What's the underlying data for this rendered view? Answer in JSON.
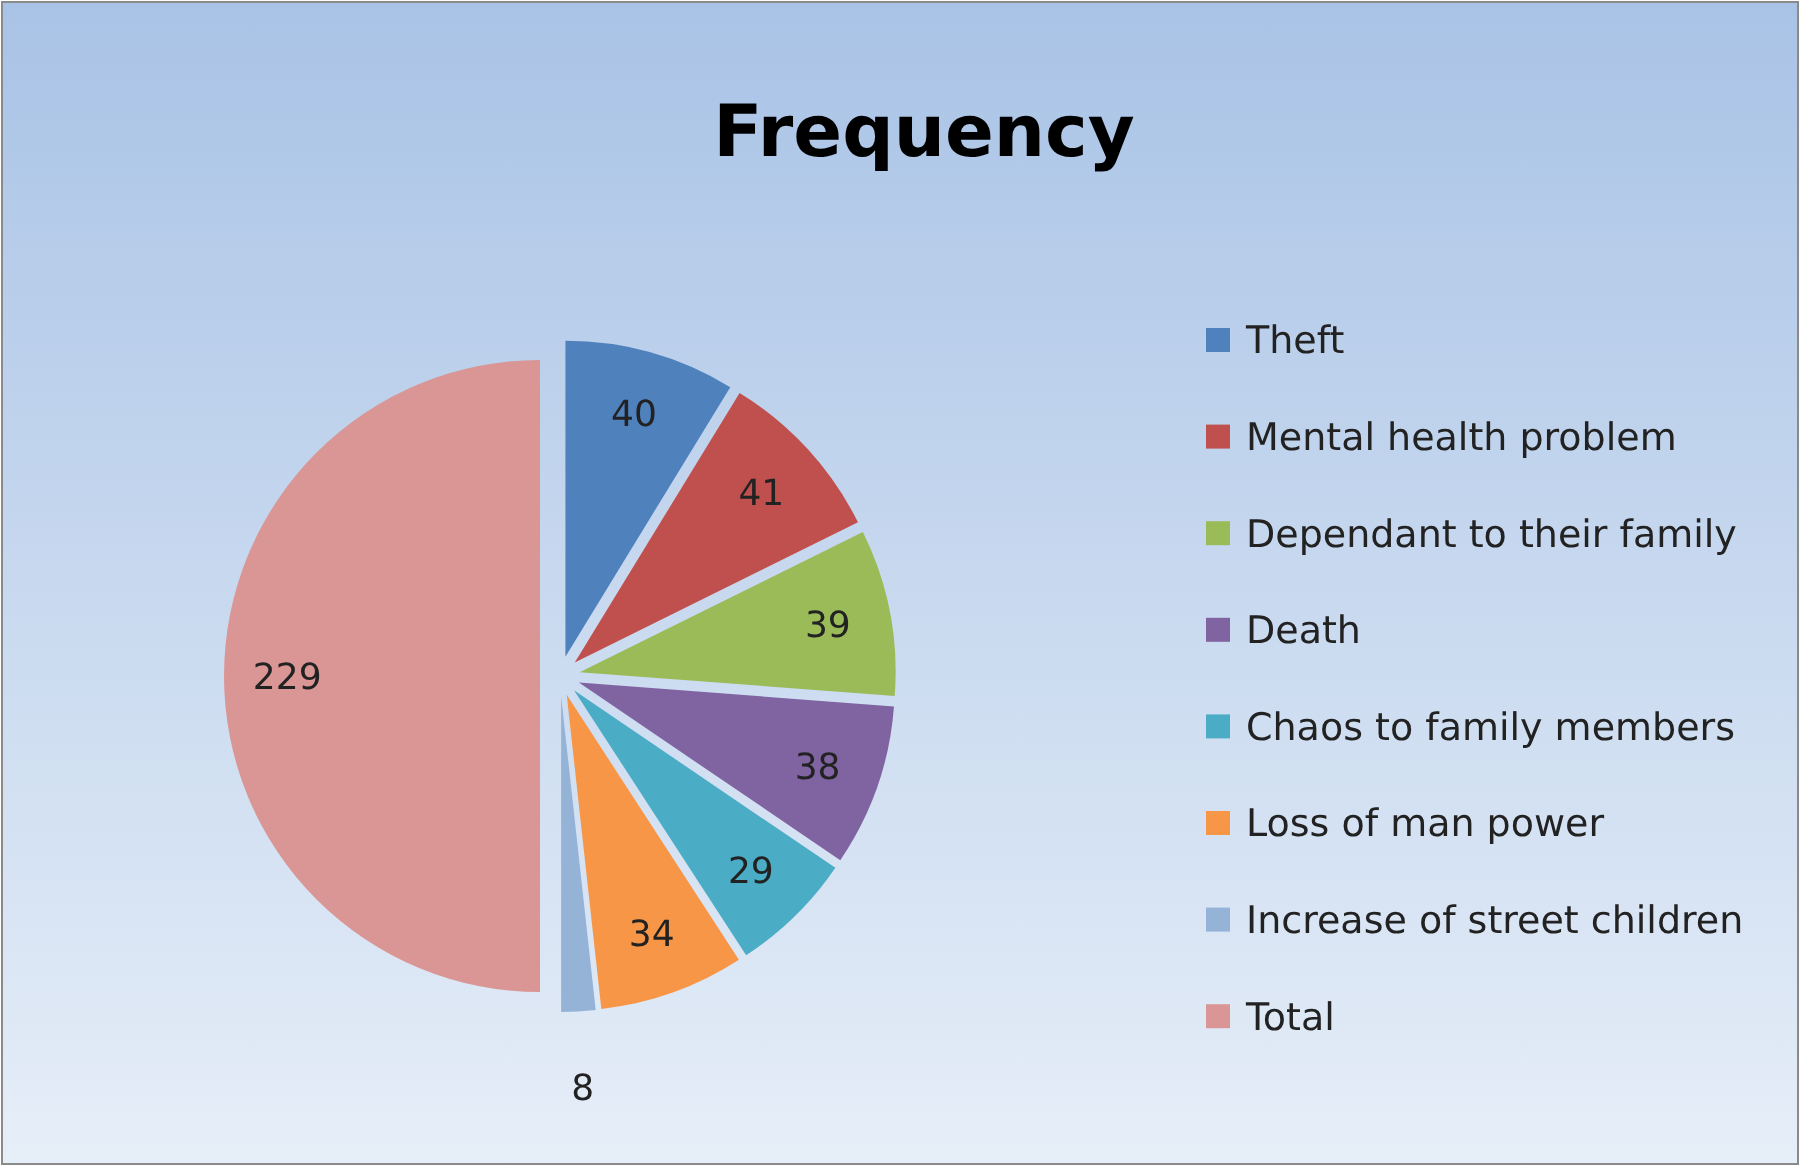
{
  "chart_data": {
    "type": "pie",
    "title": "Frequency",
    "categories": [
      "Theft",
      "Mental health problem",
      "Dependant to their family",
      "Death",
      "Chaos to family members",
      "Loss of man power",
      "Increase of street children",
      "Total"
    ],
    "values": [
      40,
      41,
      39,
      38,
      29,
      34,
      8,
      229
    ],
    "colors": [
      "#4f81bd",
      "#c0504d",
      "#9bbb59",
      "#8064a2",
      "#4bacc6",
      "#f79646",
      "#95b3d7",
      "#d99694"
    ],
    "data_labels": true,
    "legend": "right"
  }
}
